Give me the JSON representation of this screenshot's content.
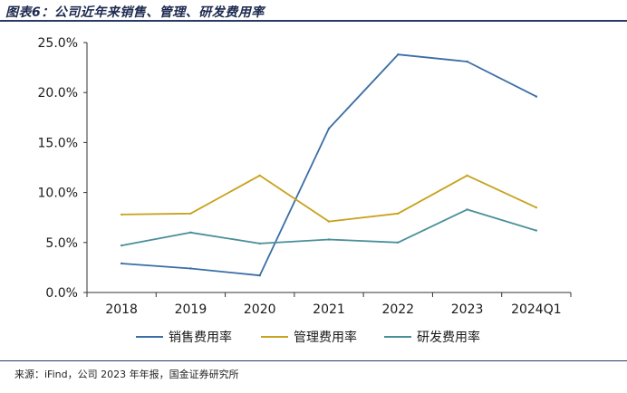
{
  "header": {
    "title": "图表6：公司近年来销售、管理、研发费用率"
  },
  "footer": {
    "source": "来源：iFind，公司 2023 年年报，国金证券研究所"
  },
  "colors": {
    "sales": "#3a6ea5",
    "admin": "#c8a21c",
    "rd": "#4a8f9a",
    "axis": "#333333",
    "rule": "#2a3a66"
  },
  "chart_data": {
    "type": "line",
    "title": "图表6：公司近年来销售、管理、研发费用率",
    "categories": [
      "2018",
      "2019",
      "2020",
      "2021",
      "2022",
      "2023",
      "2024Q1"
    ],
    "series": [
      {
        "name": "销售费用率",
        "values": [
          2.9,
          2.4,
          1.7,
          16.4,
          23.8,
          23.1,
          19.6
        ]
      },
      {
        "name": "管理费用率",
        "values": [
          7.8,
          7.9,
          11.7,
          7.1,
          7.9,
          11.7,
          8.5
        ]
      },
      {
        "name": "研发费用率",
        "values": [
          4.7,
          6.0,
          4.9,
          5.3,
          5.0,
          8.3,
          6.2
        ]
      }
    ],
    "ylim": [
      0,
      25
    ],
    "yticks": [
      "0.0%",
      "5.0%",
      "10.0%",
      "15.0%",
      "20.0%",
      "25.0%"
    ],
    "xlabel": "",
    "ylabel": "",
    "legend": "bottom-center"
  }
}
